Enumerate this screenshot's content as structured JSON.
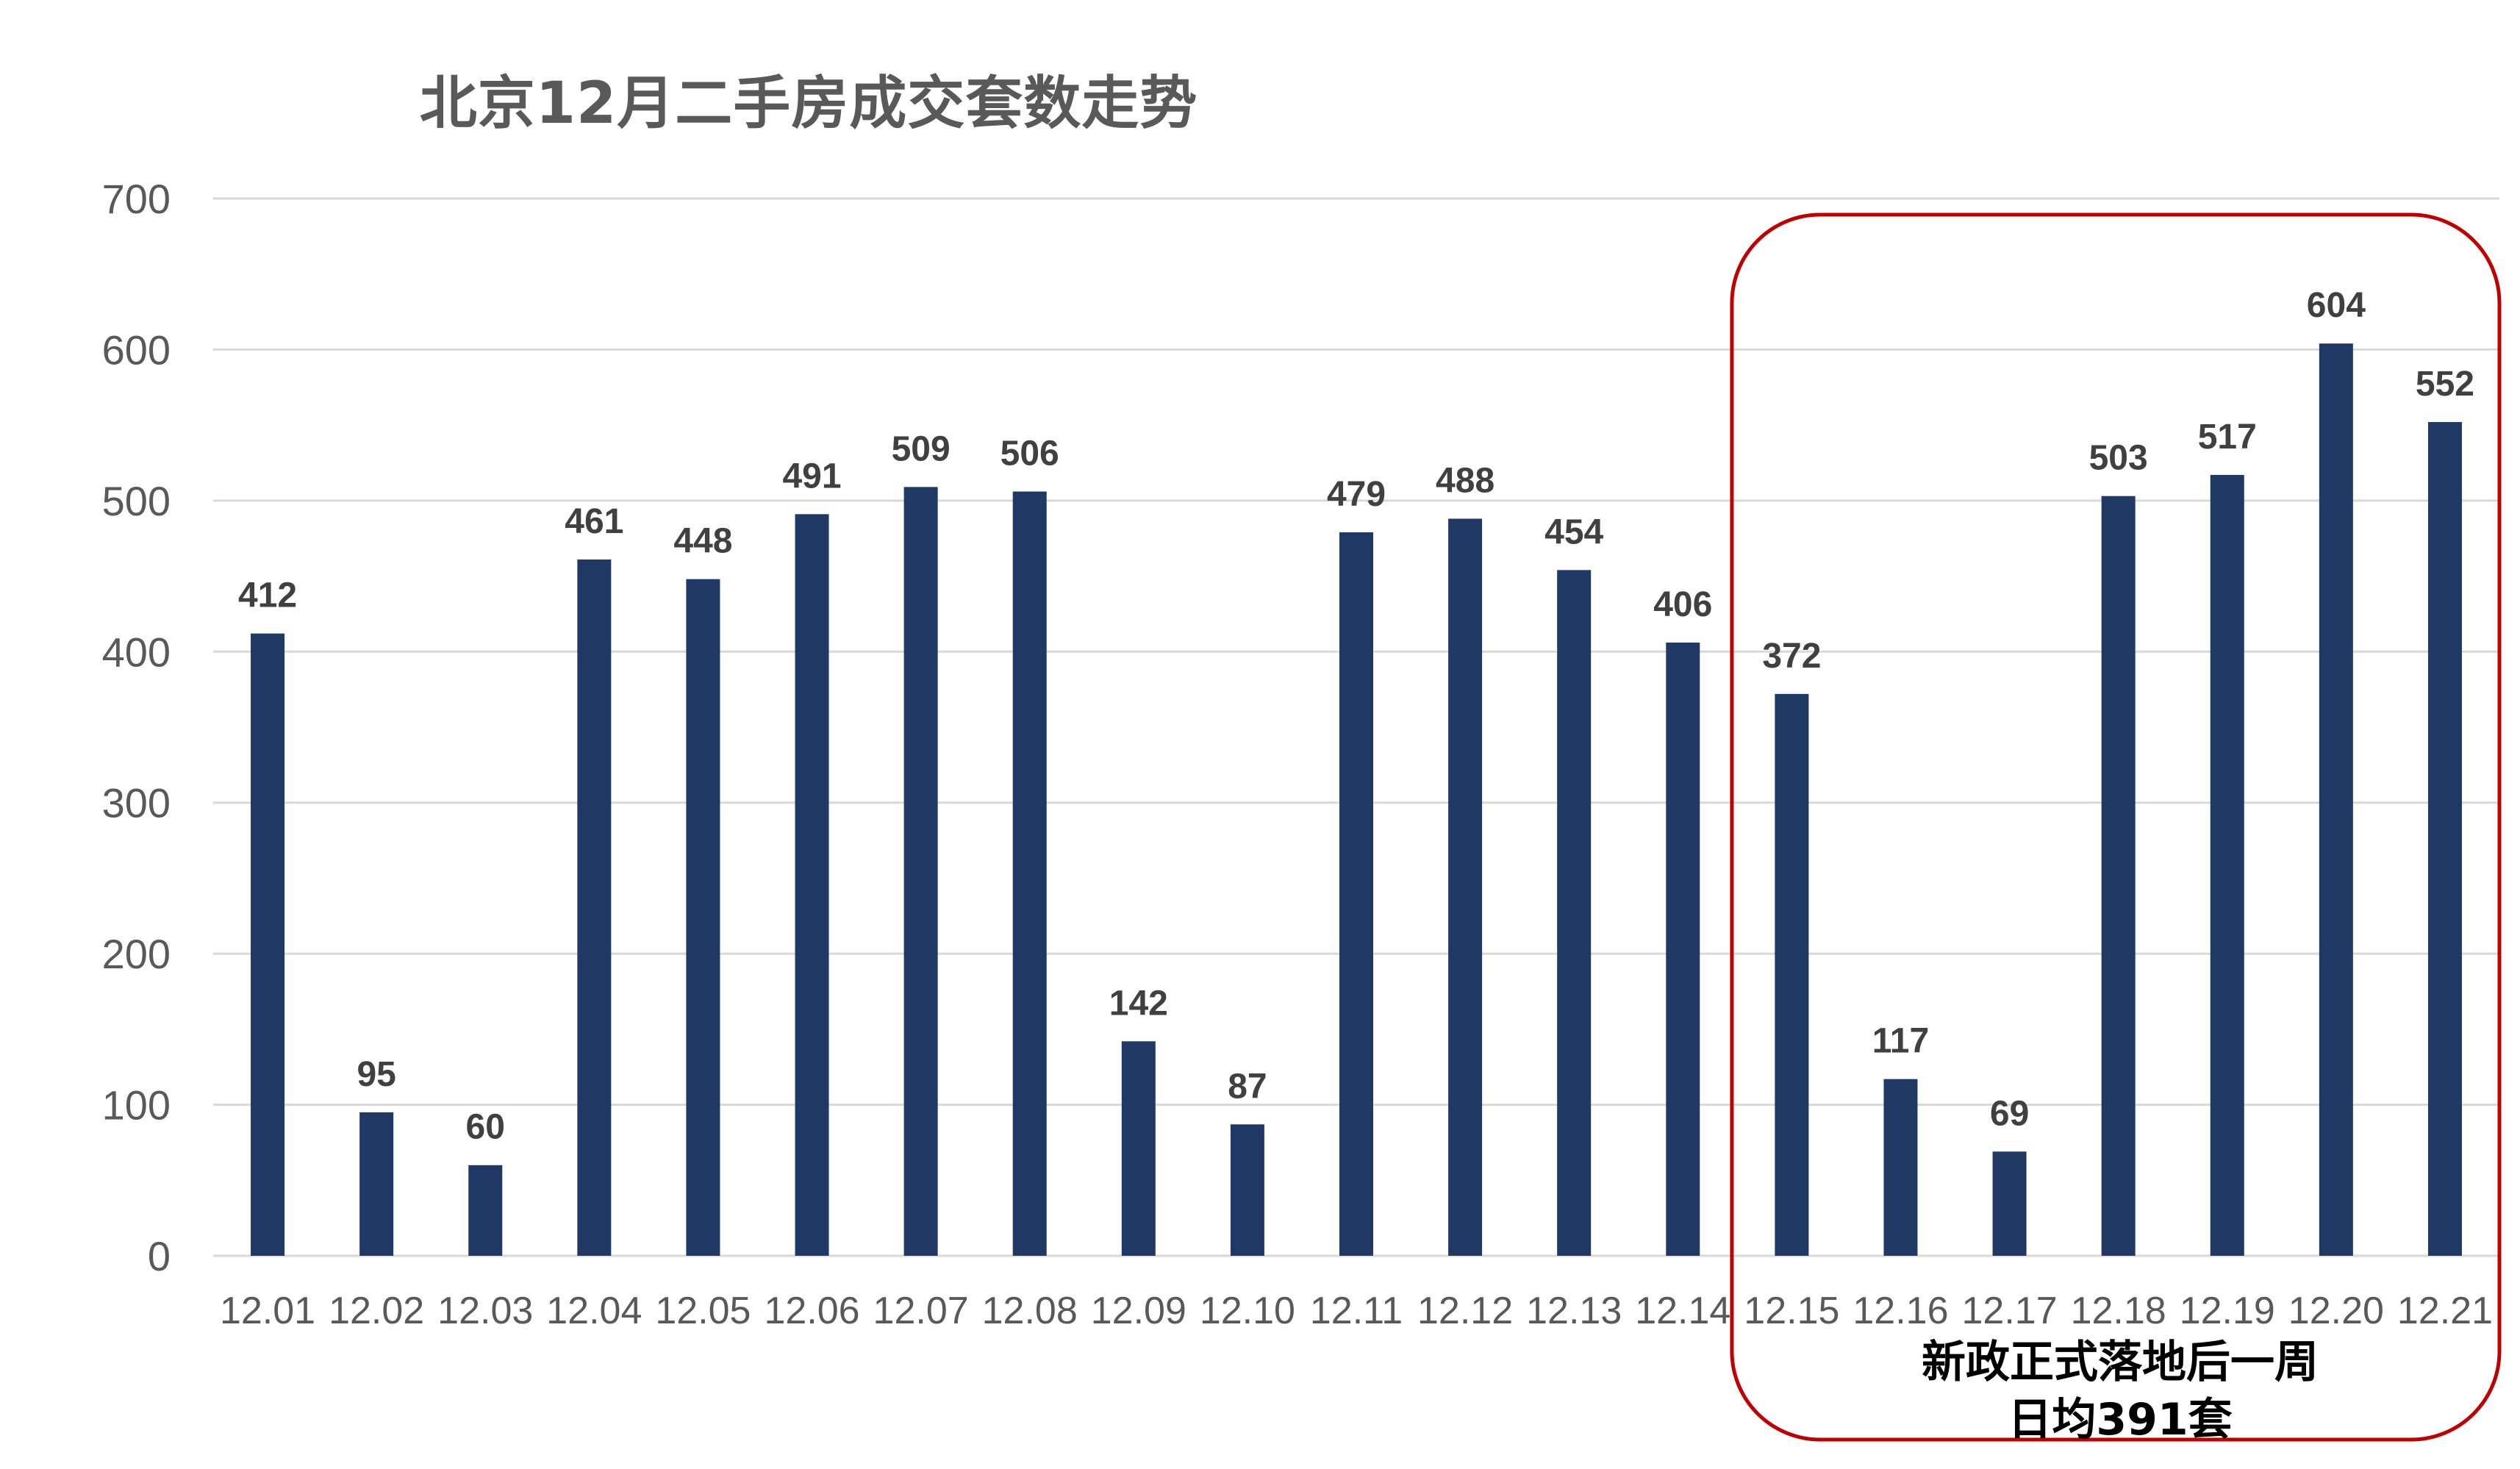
{
  "chart_data": {
    "type": "bar",
    "title": "北京12月二手房成交套数走势",
    "xlabel": "",
    "ylabel": "",
    "ylim": [
      0,
      700
    ],
    "yticks": [
      0,
      100,
      200,
      300,
      400,
      500,
      600,
      700
    ],
    "grid": true,
    "legend": "none",
    "categories": [
      "12.01",
      "12.02",
      "12.03",
      "12.04",
      "12.05",
      "12.06",
      "12.07",
      "12.08",
      "12.09",
      "12.10",
      "12.11",
      "12.12",
      "12.13",
      "12.14",
      "12.15",
      "12.16",
      "12.17",
      "12.18",
      "12.19",
      "12.20",
      "12.21"
    ],
    "values": [
      412,
      95,
      60,
      461,
      448,
      491,
      509,
      506,
      142,
      87,
      479,
      488,
      454,
      406,
      372,
      117,
      69,
      503,
      517,
      604,
      552
    ],
    "bar_color": "#203864",
    "annotation": {
      "range": [
        "12.15",
        "12.21"
      ],
      "border_color": "#C00000",
      "lines": [
        "新政正式落地后一周",
        "日均391套"
      ]
    }
  }
}
